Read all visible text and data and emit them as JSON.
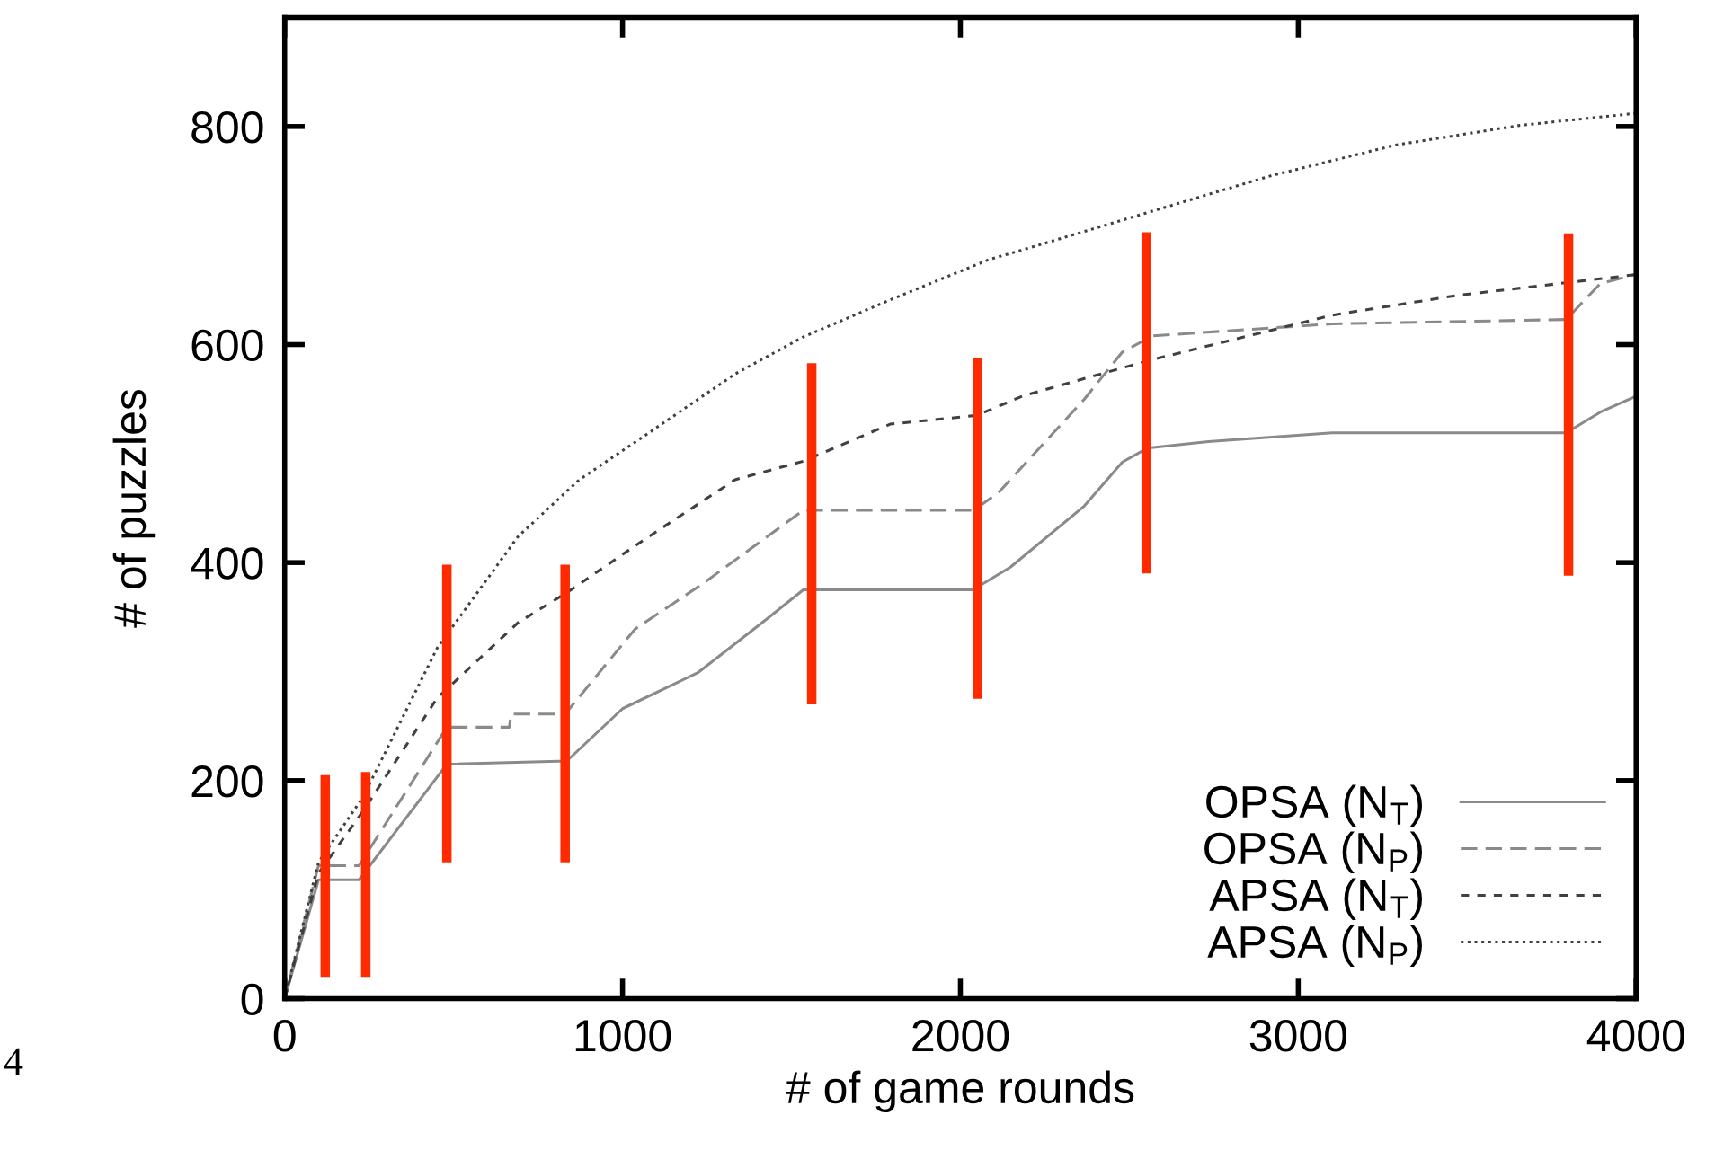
{
  "chart_data": {
    "type": "line",
    "xlabel": "# of game rounds",
    "ylabel": "# of puzzles",
    "xlim": [
      0,
      4000
    ],
    "ylim": [
      0,
      900
    ],
    "xticks": [
      0,
      1000,
      2000,
      3000,
      4000
    ],
    "yticks": [
      0,
      200,
      400,
      600,
      800
    ],
    "grid": false,
    "legend": "bottom right",
    "marker": "none",
    "annotations": [
      "4"
    ],
    "series": [
      {
        "name": "OPSA (N$_{T}$)",
        "color": "#8a8a8a",
        "line_style": "solid",
        "x": [
          0,
          100,
          220,
          480,
          835,
          1000,
          1223,
          1426,
          1535,
          2037,
          2149,
          2367,
          2479,
          2553,
          2734,
          3101,
          3793,
          3894,
          3995
        ],
        "values": [
          0,
          109,
          109,
          215,
          218,
          266,
          299,
          348,
          375,
          375,
          396,
          452,
          492,
          505,
          511,
          519,
          519,
          538,
          552
        ]
      },
      {
        "name": "OPSA (N$_{P}$)",
        "color": "#8a8a8a",
        "line_style": "dashed",
        "x": [
          0,
          100,
          220,
          480,
          665,
          670,
          830,
          1037,
          1239,
          1535,
          2040,
          2112,
          2367,
          2479,
          2569,
          3101,
          3793,
          3894,
          3995
        ],
        "values": [
          0,
          122,
          122,
          249,
          249,
          261,
          261,
          339,
          381,
          448,
          448,
          464,
          550,
          593,
          608,
          619,
          623,
          656,
          664
        ]
      },
      {
        "name": "APSA (N$_{T}$)",
        "color": "#404040",
        "line_style": "dashed",
        "x": [
          0,
          100,
          232,
          452,
          691,
          838,
          1059,
          1333,
          1535,
          1792,
          2048,
          2186,
          2553,
          3101,
          3468,
          3995
        ],
        "values": [
          0,
          115,
          172,
          276,
          345,
          373,
          420,
          476,
          493,
          527,
          535,
          553,
          585,
          627,
          645,
          664
        ]
      },
      {
        "name": "APSA (N$_{P}$)",
        "color": "#404040",
        "line_style": "dotted",
        "x": [
          0,
          100,
          232,
          452,
          691,
          872,
          1059,
          1333,
          1535,
          1792,
          2085,
          2186,
          2553,
          2921,
          3288,
          3655,
          3995
        ],
        "values": [
          0,
          125,
          185,
          322,
          424,
          476,
          515,
          573,
          607,
          641,
          678,
          687,
          721,
          755,
          783,
          801,
          812
        ]
      },
      {
        "type": "bar",
        "color": "#ff2a00",
        "x": [
          120,
          240,
          480,
          830,
          1560,
          2050,
          2550,
          3800
        ],
        "base": [
          20,
          20,
          125,
          125,
          270,
          275,
          390,
          388
        ],
        "values": [
          185,
          188,
          273,
          273,
          313,
          313,
          313,
          314
        ]
      }
    ]
  }
}
